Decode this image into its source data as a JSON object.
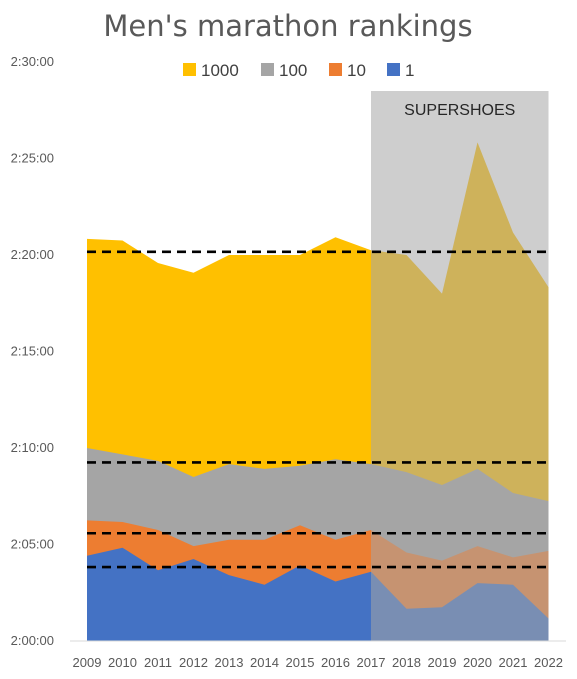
{
  "chart_data": {
    "type": "area",
    "title": "Men's marathon rankings",
    "x": [
      "2009",
      "2010",
      "2011",
      "2012",
      "2013",
      "2014",
      "2015",
      "2016",
      "2017",
      "2018",
      "2019",
      "2020",
      "2021",
      "2022"
    ],
    "y_ticks": [
      "2:00:00",
      "2:05:00",
      "2:10:00",
      "2:15:00",
      "2:20:00",
      "2:25:00",
      "2:30:00"
    ],
    "ylim_seconds": [
      7200,
      9000
    ],
    "series": [
      {
        "name": "1000",
        "color": "#FFC000",
        "values": [
          "2:20:50",
          "2:20:45",
          "2:19:35",
          "2:19:05",
          "2:20:00",
          "2:20:00",
          "2:20:00",
          "2:20:55",
          "2:20:15",
          "2:20:00",
          "2:18:00",
          "2:25:50",
          "2:21:10",
          "2:18:20"
        ]
      },
      {
        "name": "100",
        "color": "#A5A5A5",
        "values": [
          "2:10:00",
          "2:09:40",
          "2:09:20",
          "2:08:30",
          "2:09:10",
          "2:08:55",
          "2:09:05",
          "2:09:25",
          "2:09:10",
          "2:08:45",
          "2:08:05",
          "2:08:55",
          "2:07:40",
          "2:07:15"
        ]
      },
      {
        "name": "10",
        "color": "#ED7D31",
        "values": [
          "2:06:15",
          "2:06:10",
          "2:05:45",
          "2:04:55",
          "2:05:15",
          "2:05:15",
          "2:06:00",
          "2:05:15",
          "2:05:45",
          "2:04:35",
          "2:04:10",
          "2:04:55",
          "2:04:20",
          "2:04:40"
        ]
      },
      {
        "name": "1",
        "color": "#4472C4",
        "values": [
          "2:04:25",
          "2:04:50",
          "2:03:40",
          "2:04:15",
          "2:03:25",
          "2:02:55",
          "2:03:55",
          "2:03:05",
          "2:03:35",
          "2:01:40",
          "2:01:45",
          "2:03:00",
          "2:02:55",
          "2:01:10"
        ]
      }
    ],
    "reference_lines": [
      "2:20:10",
      "2:09:15",
      "2:05:35",
      "2:03:50"
    ],
    "shaded_region": {
      "label": "SUPERSHOES",
      "from": "2017",
      "to": "2022"
    },
    "legend_position": "top"
  }
}
